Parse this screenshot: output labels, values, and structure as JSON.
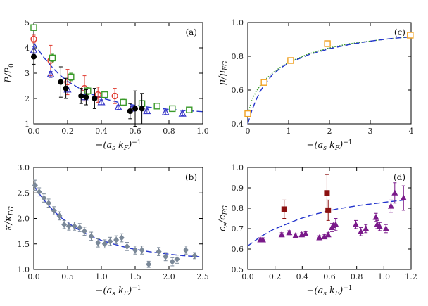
{
  "chart_data": [
    {
      "id": "a",
      "type": "scatter",
      "panel_label": "(a)",
      "xlabel": "−(a_s k_F)⁻¹",
      "ylabel": "P/P₀",
      "xlim": [
        0,
        1.0
      ],
      "ylim": [
        1,
        5
      ],
      "xticks": [
        "0.0",
        "0.2",
        "0.4",
        "0.6",
        "0.8",
        "1.0"
      ],
      "yticks": [
        "1",
        "2",
        "3",
        "4",
        "5"
      ],
      "grid": false,
      "legend": "none",
      "colors": {
        "circles_open": "#e03a2f",
        "squares_open": "#3a9a2a",
        "triangles_open": "#3a3ac8",
        "circles_filled": "#000000",
        "curve": "#2233cc"
      },
      "curve": {
        "style": "dashed",
        "x": [
          0,
          0.05,
          0.1,
          0.15,
          0.2,
          0.3,
          0.4,
          0.5,
          0.6,
          0.7,
          0.8,
          0.9,
          1.0
        ],
        "y": [
          4.2,
          3.7,
          3.3,
          2.95,
          2.68,
          2.28,
          2.02,
          1.85,
          1.73,
          1.64,
          1.57,
          1.52,
          1.48
        ]
      },
      "series": [
        {
          "marker": "circle-open",
          "color": "#e03a2f",
          "x": [
            0.0,
            0.1,
            0.2,
            0.3,
            0.38,
            0.48
          ],
          "y": [
            4.35,
            3.5,
            2.65,
            2.4,
            2.15,
            2.1
          ],
          "err": [
            0.15,
            0.6,
            0.5,
            0.5,
            0.3,
            0.3
          ]
        },
        {
          "marker": "square-open",
          "color": "#3a9a2a",
          "x": [
            0.0,
            0.11,
            0.22,
            0.32,
            0.42,
            0.53,
            0.64,
            0.73,
            0.82,
            0.92
          ],
          "y": [
            4.8,
            3.6,
            2.85,
            2.3,
            2.15,
            1.85,
            1.8,
            1.7,
            1.6,
            1.55
          ],
          "err": [
            0.1,
            0.15,
            0.15,
            0.15,
            0.12,
            0.12,
            0.12,
            0.1,
            0.08,
            0.08
          ]
        },
        {
          "marker": "triangle-open",
          "color": "#3a3ac8",
          "x": [
            0.0,
            0.1,
            0.2,
            0.3,
            0.4,
            0.5,
            0.58,
            0.67,
            0.78,
            0.88
          ],
          "y": [
            3.9,
            2.95,
            2.35,
            2.05,
            1.85,
            1.65,
            1.6,
            1.5,
            1.45,
            1.4
          ],
          "err": [
            0.15,
            0.12,
            0.1,
            0.1,
            0.1,
            0.08,
            0.08,
            0.08,
            0.08,
            0.08
          ]
        },
        {
          "marker": "circle-filled",
          "color": "#000000",
          "x": [
            0.0,
            0.16,
            0.19,
            0.28,
            0.31,
            0.36,
            0.57,
            0.6,
            0.64
          ],
          "y": [
            3.65,
            2.65,
            2.4,
            2.1,
            2.05,
            2.0,
            1.5,
            1.6,
            1.6
          ],
          "err": [
            0.3,
            0.6,
            0.4,
            0.3,
            0.3,
            0.4,
            0.3,
            0.7,
            0.6
          ]
        }
      ]
    },
    {
      "id": "c",
      "type": "scatter",
      "panel_label": "(c)",
      "xlabel": "−(a_s k_F)⁻¹",
      "ylabel": "μ/μ_FG",
      "xlim": [
        0,
        4
      ],
      "ylim": [
        0.4,
        1.0
      ],
      "xticks": [
        "0",
        "1",
        "2",
        "3",
        "4"
      ],
      "yticks": [
        "0.4",
        "0.6",
        "0.8",
        "1.0"
      ],
      "grid": false,
      "legend": "none",
      "colors": {
        "squares": "#f0a020",
        "curve": "#2233cc",
        "dotted": "#3a9a2a"
      },
      "curve": {
        "style": "dashed",
        "x": [
          0,
          0.05,
          0.1,
          0.2,
          0.3,
          0.4,
          0.6,
          0.8,
          1.0,
          1.5,
          2.0,
          2.5,
          3.0,
          3.5,
          4.0
        ],
        "y": [
          0.4,
          0.44,
          0.48,
          0.54,
          0.59,
          0.63,
          0.69,
          0.73,
          0.76,
          0.81,
          0.845,
          0.87,
          0.89,
          0.905,
          0.915
        ]
      },
      "curve_dotted": {
        "x": [
          0,
          0.05,
          0.1,
          0.2,
          0.3,
          0.4,
          0.6,
          0.8,
          1.0,
          1.5,
          2.0,
          2.5,
          3.0,
          3.5,
          4.0
        ],
        "y": [
          0.45,
          0.5,
          0.54,
          0.59,
          0.625,
          0.655,
          0.7,
          0.735,
          0.765,
          0.815,
          0.85,
          0.875,
          0.89,
          0.905,
          0.915
        ]
      },
      "series": [
        {
          "marker": "square-open",
          "color": "#f0a020",
          "x": [
            0.0,
            0.4,
            1.05,
            1.95,
            3.98
          ],
          "y": [
            0.46,
            0.645,
            0.775,
            0.875,
            0.925
          ]
        }
      ]
    },
    {
      "id": "b",
      "type": "scatter",
      "panel_label": "(b)",
      "xlabel": "−(a_s k_F)⁻¹",
      "ylabel": "κ/κ_FG",
      "xlim": [
        0,
        2.5
      ],
      "ylim": [
        1.0,
        3.0
      ],
      "xticks": [
        "0.0",
        "0.5",
        "1.0",
        "1.5",
        "2.0",
        "2.5"
      ],
      "yticks": [
        "1.0",
        "1.5",
        "2.0",
        "2.5",
        "3.0"
      ],
      "grid": false,
      "legend": "none",
      "colors": {
        "diamonds": "#7a8898",
        "curve": "#2233cc"
      },
      "curve": {
        "style": "dashed",
        "x": [
          0,
          0.1,
          0.2,
          0.3,
          0.4,
          0.5,
          0.6,
          0.8,
          1.0,
          1.2,
          1.4,
          1.6,
          1.8,
          2.0,
          2.2,
          2.45
        ],
        "y": [
          2.65,
          2.45,
          2.28,
          2.14,
          2.02,
          1.92,
          1.83,
          1.68,
          1.57,
          1.49,
          1.42,
          1.37,
          1.33,
          1.3,
          1.27,
          1.25
        ]
      },
      "series": [
        {
          "marker": "diamond",
          "color": "#7a8898",
          "x": [
            0.02,
            0.08,
            0.15,
            0.22,
            0.3,
            0.38,
            0.45,
            0.52,
            0.6,
            0.68,
            0.75,
            0.85,
            0.95,
            1.05,
            1.13,
            1.22,
            1.3,
            1.38,
            1.5,
            1.6,
            1.7,
            1.85,
            1.95,
            2.05,
            2.12,
            2.25,
            2.38
          ],
          "y": [
            2.65,
            2.52,
            2.4,
            2.3,
            2.15,
            2.05,
            1.88,
            1.85,
            1.85,
            1.82,
            1.75,
            1.65,
            1.52,
            1.5,
            1.55,
            1.58,
            1.62,
            1.45,
            1.38,
            1.38,
            1.1,
            1.35,
            1.25,
            1.15,
            1.2,
            1.38,
            1.27
          ],
          "err": [
            0.1,
            0.08,
            0.08,
            0.08,
            0.08,
            0.08,
            0.08,
            0.08,
            0.08,
            0.08,
            0.08,
            0.08,
            0.08,
            0.08,
            0.08,
            0.08,
            0.08,
            0.08,
            0.08,
            0.08,
            0.06,
            0.08,
            0.08,
            0.08,
            0.08,
            0.08,
            0.06
          ]
        }
      ]
    },
    {
      "id": "d",
      "type": "scatter",
      "panel_label": "(d)",
      "xlabel": "−(a_s k_F)⁻¹",
      "ylabel": "c_s/c_FG",
      "xlim": [
        0,
        1.3
      ],
      "ylim": [
        0.5,
        1.0
      ],
      "xticks": [
        "0.0",
        "0.2",
        "0.4",
        "0.6",
        "0.8",
        "1.0",
        "1.2"
      ],
      "yticks": [
        "0.5",
        "0.6",
        "0.7",
        "0.8",
        "0.9",
        "1.0"
      ],
      "grid": false,
      "legend": "none",
      "colors": {
        "squares": "#8b1010",
        "triangles": "#7a1a8a",
        "curve": "#2233cc"
      },
      "curve": {
        "style": "dashed",
        "x": [
          0,
          0.1,
          0.2,
          0.3,
          0.4,
          0.5,
          0.6,
          0.7,
          0.8,
          0.9,
          1.0,
          1.1,
          1.2,
          1.27
        ],
        "y": [
          0.615,
          0.66,
          0.695,
          0.72,
          0.745,
          0.765,
          0.78,
          0.795,
          0.805,
          0.815,
          0.822,
          0.83,
          0.837,
          0.842
        ]
      },
      "series": [
        {
          "marker": "square-filled",
          "color": "#8b1010",
          "x": [
            0.29,
            0.63,
            0.64
          ],
          "y": [
            0.795,
            0.875,
            0.79
          ],
          "err": [
            0.045,
            0.09,
            0.05
          ]
        },
        {
          "marker": "triangle-filled",
          "color": "#7a1a8a",
          "x": [
            0.1,
            0.12,
            0.27,
            0.33,
            0.38,
            0.43,
            0.46,
            0.57,
            0.61,
            0.64,
            0.67,
            0.68,
            0.7,
            0.86,
            0.9,
            0.94,
            1.02,
            1.03,
            1.05,
            1.1,
            1.14,
            1.17,
            1.24
          ],
          "y": [
            0.645,
            0.645,
            0.67,
            0.68,
            0.665,
            0.67,
            0.675,
            0.655,
            0.66,
            0.67,
            0.705,
            0.715,
            0.72,
            0.72,
            0.685,
            0.7,
            0.755,
            0.72,
            0.71,
            0.7,
            0.81,
            0.875,
            0.85
          ],
          "err": [
            0.01,
            0.01,
            0.01,
            0.01,
            0.01,
            0.01,
            0.01,
            0.01,
            0.01,
            0.01,
            0.02,
            0.01,
            0.03,
            0.02,
            0.02,
            0.02,
            0.02,
            0.02,
            0.02,
            0.02,
            0.03,
            0.05,
            0.06
          ]
        }
      ]
    }
  ]
}
